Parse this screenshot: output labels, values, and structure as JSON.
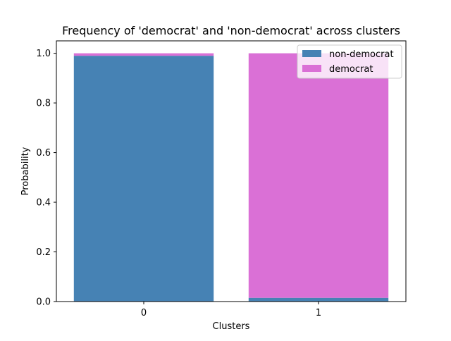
{
  "chart_data": {
    "type": "bar",
    "stacked": true,
    "title": "Frequency of 'democrat' and 'non-democrat' across clusters",
    "xlabel": "Clusters",
    "ylabel": "Probability",
    "categories": [
      "0",
      "1"
    ],
    "ylim": [
      0,
      1.05
    ],
    "yticks": [
      0.0,
      0.2,
      0.4,
      0.6,
      0.8,
      1.0
    ],
    "ytick_labels": [
      "0.0",
      "0.2",
      "0.4",
      "0.6",
      "0.8",
      "1.0"
    ],
    "grid": false,
    "legend_position": "top-right",
    "series": [
      {
        "name": "non-democrat",
        "color": "#4682b4",
        "values": [
          0.99,
          0.015
        ]
      },
      {
        "name": "democrat",
        "color": "#da70d6",
        "values": [
          0.01,
          0.985
        ]
      }
    ]
  }
}
